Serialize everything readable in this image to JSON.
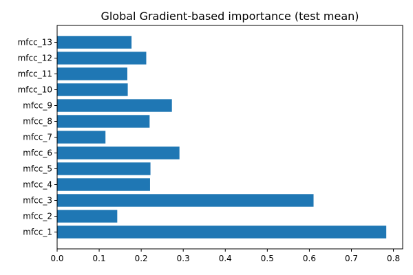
{
  "chart_data": {
    "type": "bar",
    "orientation": "horizontal",
    "title": "Global Gradient-based importance (test mean)",
    "xlabel": "",
    "ylabel": "",
    "categories": [
      "mfcc_1",
      "mfcc_2",
      "mfcc_3",
      "mfcc_4",
      "mfcc_5",
      "mfcc_6",
      "mfcc_7",
      "mfcc_8",
      "mfcc_9",
      "mfcc_10",
      "mfcc_11",
      "mfcc_12",
      "mfcc_13"
    ],
    "values": [
      0.783,
      0.143,
      0.61,
      0.221,
      0.222,
      0.291,
      0.115,
      0.22,
      0.273,
      0.168,
      0.167,
      0.212,
      0.177
    ],
    "xlim": [
      0,
      0.822
    ],
    "xticks": [
      0.0,
      0.1,
      0.2,
      0.3,
      0.4,
      0.5,
      0.6,
      0.7,
      0.8
    ],
    "xtick_labels": [
      "0.0",
      "0.1",
      "0.2",
      "0.3",
      "0.4",
      "0.5",
      "0.6",
      "0.7",
      "0.8"
    ],
    "grid": false,
    "legend": "none",
    "bar_color": "#1f77b4"
  }
}
